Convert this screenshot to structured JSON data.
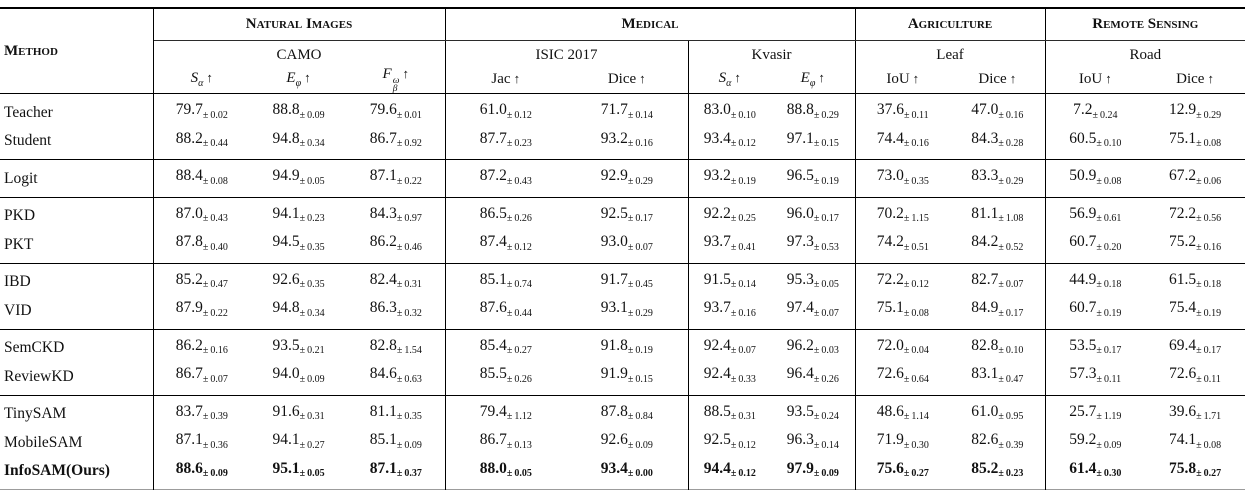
{
  "table": {
    "method_header": "Method",
    "arrow": "↑",
    "plus_minus": "±",
    "groups": [
      {
        "label": "Natural Images",
        "datasets": [
          {
            "name": "CAMO",
            "metrics": [
              {
                "t": "S",
                "sub": "α",
                "it": true
              },
              {
                "t": "E",
                "sub": "φ",
                "it": true
              },
              {
                "t": "F",
                "sub": "β",
                "sup": "ω",
                "it": true
              }
            ]
          }
        ]
      },
      {
        "label": "Medical",
        "datasets": [
          {
            "name": "ISIC 2017",
            "metrics": [
              {
                "t": "Jac"
              },
              {
                "t": "Dice"
              }
            ]
          },
          {
            "name": "Kvasir",
            "metrics": [
              {
                "t": "S",
                "sub": "α",
                "it": true
              },
              {
                "t": "E",
                "sub": "φ",
                "it": true
              }
            ]
          }
        ]
      },
      {
        "label": "Agriculture",
        "datasets": [
          {
            "name": "Leaf",
            "metrics": [
              {
                "t": "IoU"
              },
              {
                "t": "Dice"
              }
            ]
          }
        ]
      },
      {
        "label": "Remote Sensing",
        "datasets": [
          {
            "name": "Road",
            "metrics": [
              {
                "t": "IoU"
              },
              {
                "t": "Dice"
              }
            ]
          }
        ]
      }
    ],
    "row_groups": [
      {
        "rows": [
          {
            "method": "Teacher",
            "bold": false,
            "values": [
              [
                "79.7",
                "0.02"
              ],
              [
                "88.8",
                "0.09"
              ],
              [
                "79.6",
                "0.01"
              ],
              [
                "61.0",
                "0.12"
              ],
              [
                "71.7",
                "0.14"
              ],
              [
                "83.0",
                "0.10"
              ],
              [
                "88.8",
                "0.29"
              ],
              [
                "37.6",
                "0.11"
              ],
              [
                "47.0",
                "0.16"
              ],
              [
                "7.2",
                "0.24"
              ],
              [
                "12.9",
                "0.29"
              ]
            ]
          },
          {
            "method": "Student",
            "bold": false,
            "values": [
              [
                "88.2",
                "0.44"
              ],
              [
                "94.8",
                "0.34"
              ],
              [
                "86.7",
                "0.92"
              ],
              [
                "87.7",
                "0.23"
              ],
              [
                "93.2",
                "0.16"
              ],
              [
                "93.4",
                "0.12"
              ],
              [
                "97.1",
                "0.15"
              ],
              [
                "74.4",
                "0.16"
              ],
              [
                "84.3",
                "0.28"
              ],
              [
                "60.5",
                "0.10"
              ],
              [
                "75.1",
                "0.08"
              ]
            ]
          }
        ]
      },
      {
        "rows": [
          {
            "method": "Logit",
            "bold": false,
            "values": [
              [
                "88.4",
                "0.08"
              ],
              [
                "94.9",
                "0.05"
              ],
              [
                "87.1",
                "0.22"
              ],
              [
                "87.2",
                "0.43"
              ],
              [
                "92.9",
                "0.29"
              ],
              [
                "93.2",
                "0.19"
              ],
              [
                "96.5",
                "0.19"
              ],
              [
                "73.0",
                "0.35"
              ],
              [
                "83.3",
                "0.29"
              ],
              [
                "50.9",
                "0.08"
              ],
              [
                "67.2",
                "0.06"
              ]
            ]
          }
        ]
      },
      {
        "rows": [
          {
            "method": "PKD",
            "bold": false,
            "values": [
              [
                "87.0",
                "0.43"
              ],
              [
                "94.1",
                "0.23"
              ],
              [
                "84.3",
                "0.97"
              ],
              [
                "86.5",
                "0.26"
              ],
              [
                "92.5",
                "0.17"
              ],
              [
                "92.2",
                "0.25"
              ],
              [
                "96.0",
                "0.17"
              ],
              [
                "70.2",
                "1.15"
              ],
              [
                "81.1",
                "1.08"
              ],
              [
                "56.9",
                "0.61"
              ],
              [
                "72.2",
                "0.56"
              ]
            ]
          },
          {
            "method": "PKT",
            "bold": false,
            "values": [
              [
                "87.8",
                "0.40"
              ],
              [
                "94.5",
                "0.35"
              ],
              [
                "86.2",
                "0.46"
              ],
              [
                "87.4",
                "0.12"
              ],
              [
                "93.0",
                "0.07"
              ],
              [
                "93.7",
                "0.41"
              ],
              [
                "97.3",
                "0.53"
              ],
              [
                "74.2",
                "0.51"
              ],
              [
                "84.2",
                "0.52"
              ],
              [
                "60.7",
                "0.20"
              ],
              [
                "75.2",
                "0.16"
              ]
            ]
          }
        ]
      },
      {
        "rows": [
          {
            "method": "IBD",
            "bold": false,
            "values": [
              [
                "85.2",
                "0.47"
              ],
              [
                "92.6",
                "0.35"
              ],
              [
                "82.4",
                "0.31"
              ],
              [
                "85.1",
                "0.74"
              ],
              [
                "91.7",
                "0.45"
              ],
              [
                "91.5",
                "0.14"
              ],
              [
                "95.3",
                "0.05"
              ],
              [
                "72.2",
                "0.12"
              ],
              [
                "82.7",
                "0.07"
              ],
              [
                "44.9",
                "0.18"
              ],
              [
                "61.5",
                "0.18"
              ]
            ]
          },
          {
            "method": "VID",
            "bold": false,
            "values": [
              [
                "87.9",
                "0.22"
              ],
              [
                "94.8",
                "0.34"
              ],
              [
                "86.3",
                "0.32"
              ],
              [
                "87.6",
                "0.44"
              ],
              [
                "93.1",
                "0.29"
              ],
              [
                "93.7",
                "0.16"
              ],
              [
                "97.4",
                "0.07"
              ],
              [
                "75.1",
                "0.08"
              ],
              [
                "84.9",
                "0.17"
              ],
              [
                "60.7",
                "0.19"
              ],
              [
                "75.4",
                "0.19"
              ]
            ]
          }
        ]
      },
      {
        "rows": [
          {
            "method": "SemCKD",
            "bold": false,
            "values": [
              [
                "86.2",
                "0.16"
              ],
              [
                "93.5",
                "0.21"
              ],
              [
                "82.8",
                "1.54"
              ],
              [
                "85.4",
                "0.27"
              ],
              [
                "91.8",
                "0.19"
              ],
              [
                "92.4",
                "0.07"
              ],
              [
                "96.2",
                "0.03"
              ],
              [
                "72.0",
                "0.04"
              ],
              [
                "82.8",
                "0.10"
              ],
              [
                "53.5",
                "0.17"
              ],
              [
                "69.4",
                "0.17"
              ]
            ]
          },
          {
            "method": "ReviewKD",
            "bold": false,
            "values": [
              [
                "86.7",
                "0.07"
              ],
              [
                "94.0",
                "0.09"
              ],
              [
                "84.6",
                "0.63"
              ],
              [
                "85.5",
                "0.26"
              ],
              [
                "91.9",
                "0.15"
              ],
              [
                "92.4",
                "0.33"
              ],
              [
                "96.4",
                "0.26"
              ],
              [
                "72.6",
                "0.64"
              ],
              [
                "83.1",
                "0.47"
              ],
              [
                "57.3",
                "0.11"
              ],
              [
                "72.6",
                "0.11"
              ]
            ]
          }
        ]
      },
      {
        "rows": [
          {
            "method": "TinySAM",
            "bold": false,
            "values": [
              [
                "83.7",
                "0.39"
              ],
              [
                "91.6",
                "0.31"
              ],
              [
                "81.1",
                "0.35"
              ],
              [
                "79.4",
                "1.12"
              ],
              [
                "87.8",
                "0.84"
              ],
              [
                "88.5",
                "0.31"
              ],
              [
                "93.5",
                "0.24"
              ],
              [
                "48.6",
                "1.14"
              ],
              [
                "61.0",
                "0.95"
              ],
              [
                "25.7",
                "1.19"
              ],
              [
                "39.6",
                "1.71"
              ]
            ]
          },
          {
            "method": "MobileSAM",
            "bold": false,
            "values": [
              [
                "87.1",
                "0.36"
              ],
              [
                "94.1",
                "0.27"
              ],
              [
                "85.1",
                "0.09"
              ],
              [
                "86.7",
                "0.13"
              ],
              [
                "92.6",
                "0.09"
              ],
              [
                "92.5",
                "0.12"
              ],
              [
                "96.3",
                "0.14"
              ],
              [
                "71.9",
                "0.30"
              ],
              [
                "82.6",
                "0.39"
              ],
              [
                "59.2",
                "0.09"
              ],
              [
                "74.1",
                "0.08"
              ]
            ]
          },
          {
            "method": "InfoSAM(Ours)",
            "bold": true,
            "values": [
              [
                "88.6",
                "0.09"
              ],
              [
                "95.1",
                "0.05"
              ],
              [
                "87.1",
                "0.37"
              ],
              [
                "88.0",
                "0.05"
              ],
              [
                "93.4",
                "0.00"
              ],
              [
                "94.4",
                "0.12"
              ],
              [
                "97.9",
                "0.09"
              ],
              [
                "75.6",
                "0.27"
              ],
              [
                "85.2",
                "0.23"
              ],
              [
                "61.4",
                "0.30"
              ],
              [
                "75.8",
                "0.27"
              ]
            ]
          }
        ]
      }
    ]
  }
}
